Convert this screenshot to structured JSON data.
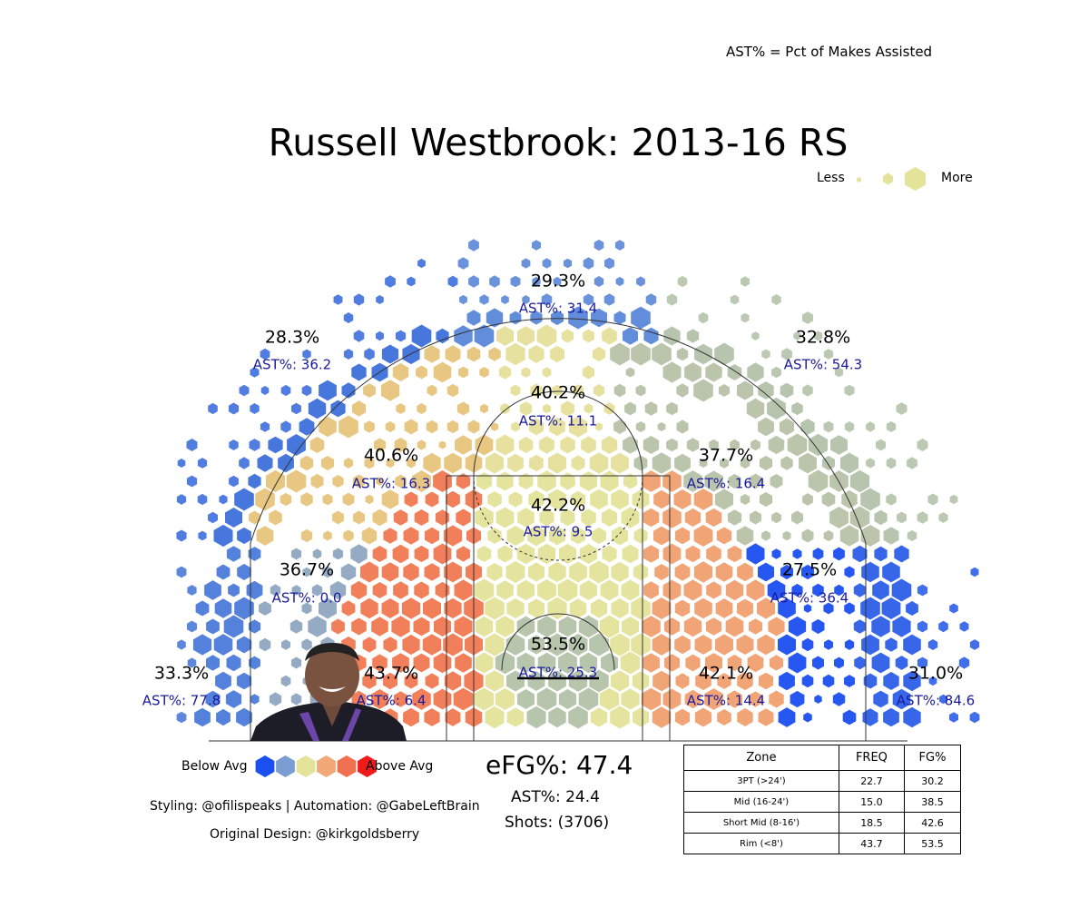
{
  "title": "Russell Westbrook: 2013-16 RS",
  "note": "AST% = Pct of Makes Assisted",
  "size_legend": {
    "less": "Less",
    "more": "More"
  },
  "color_legend": {
    "below": "Below Avg",
    "above": "Above Avg",
    "colors": [
      "#1a4ff0",
      "#7a9ed4",
      "#e3e39a",
      "#f3a877",
      "#f07050",
      "#f01a1a"
    ]
  },
  "credits": {
    "styling": "Styling: @ofilispeaks | Automation: @GabeLeftBrain",
    "original": "Original Design: @kirkgoldsberry"
  },
  "summary": {
    "efg": "eFG%: 47.4",
    "ast": "AST%: 24.4",
    "shots": "Shots: (3706)"
  },
  "chart_data": {
    "type": "hexbin shot chart",
    "zones": [
      {
        "zone": "top-3",
        "fg": "29.3%",
        "ast": "AST%: 31.4",
        "color": "#5a87d8"
      },
      {
        "zone": "left-wing-3",
        "fg": "28.3%",
        "ast": "AST%: 36.2",
        "color": "#3d6fdb"
      },
      {
        "zone": "right-wing-3",
        "fg": "32.8%",
        "ast": "AST%: 54.3",
        "color": "#b4c2aa"
      },
      {
        "zone": "top-mid",
        "fg": "40.2%",
        "ast": "AST%: 11.1",
        "color": "#e6df9b"
      },
      {
        "zone": "left-mid",
        "fg": "40.6%",
        "ast": "AST%: 16.3",
        "color": "#e7c47c"
      },
      {
        "zone": "right-mid",
        "fg": "37.7%",
        "ast": "AST%: 16.4",
        "color": "#b6c2a8"
      },
      {
        "zone": "paint-non-ra",
        "fg": "42.2%",
        "ast": "AST%: 9.5",
        "color": "#e3e39a"
      },
      {
        "zone": "left-baseline-mid",
        "fg": "36.7%",
        "ast": "AST%: 0.0",
        "color": "#8ea6c0"
      },
      {
        "zone": "right-baseline-mid",
        "fg": "27.5%",
        "ast": "AST%: 36.4",
        "color": "#1a4ff0"
      },
      {
        "zone": "restricted-area",
        "fg": "53.5%",
        "ast": "AST%: 25.3",
        "color": "#b3c2a8"
      },
      {
        "zone": "left-corner-3",
        "fg": "33.3%",
        "ast": "AST%: 77.8",
        "color": "#4b7ad9"
      },
      {
        "zone": "right-corner-3",
        "fg": "31.0%",
        "ast": "AST%: 84.6",
        "color": "#2c5ee8"
      },
      {
        "zone": "left-short-mid",
        "fg": "43.7%",
        "ast": "AST%: 6.4",
        "color": "#f07850"
      },
      {
        "zone": "right-short-mid",
        "fg": "42.1%",
        "ast": "AST%: 14.4",
        "color": "#f0a070"
      }
    ],
    "table": {
      "columns": [
        "Zone",
        "FREQ",
        "FG%"
      ],
      "rows": [
        [
          "3PT (>24')",
          "22.7",
          "30.2"
        ],
        [
          "Mid (16-24')",
          "15.0",
          "38.5"
        ],
        [
          "Short Mid (8-16')",
          "18.5",
          "42.6"
        ],
        [
          "Rim (<8')",
          "43.7",
          "53.5"
        ]
      ]
    }
  }
}
